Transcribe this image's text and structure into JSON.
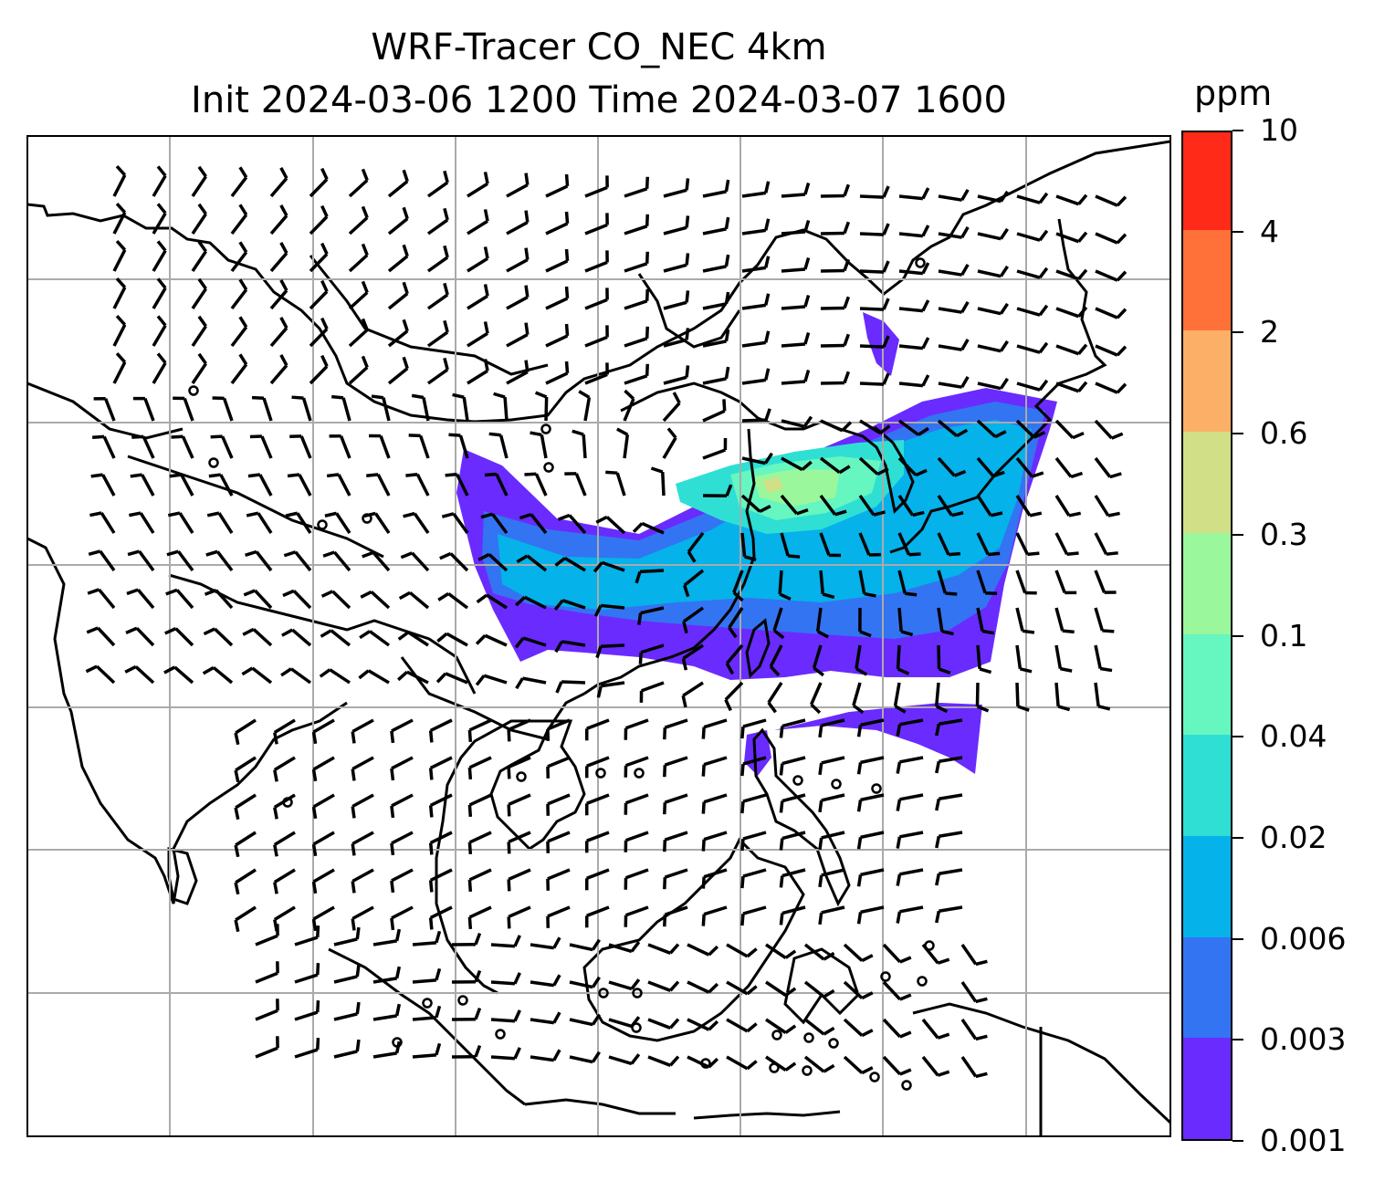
{
  "title": {
    "line1": "WRF-Tracer CO_NEC 4km",
    "line2": "Init 2024-03-06 1200 Time 2024-03-07 1600"
  },
  "colorbar": {
    "unit": "ppm",
    "levels": [
      "0.001",
      "0.003",
      "0.006",
      "0.02",
      "0.04",
      "0.1",
      "0.3",
      "0.6",
      "2",
      "4",
      "10"
    ],
    "colors": [
      "#6a2bff",
      "#3374f2",
      "#05b2ea",
      "#2fdfd4",
      "#66f6c0",
      "#9af79b",
      "#d1df86",
      "#fcb067",
      "#ff7139",
      "#ff2a17"
    ]
  },
  "map": {
    "variable": "CO_NEC tracer concentration",
    "overlay": "wind barbs",
    "gridlines": true,
    "coastlines": true
  }
}
